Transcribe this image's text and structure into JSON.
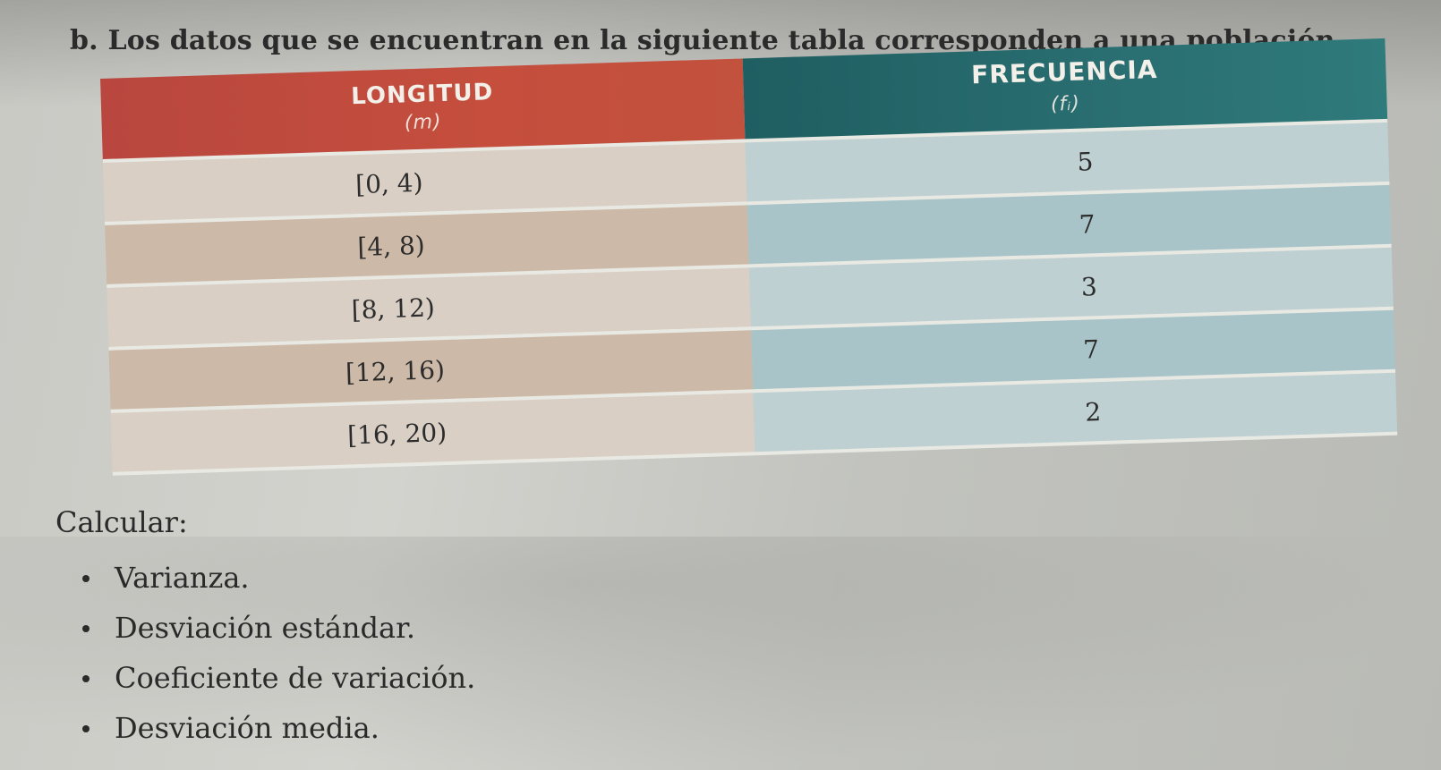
{
  "intro": "b. Los datos que se encuentran en la siguiente tabla corresponden a una población.",
  "table": {
    "headers": {
      "longitud": "LONGITUD",
      "longitud_unit": "(m)",
      "frecuencia": "FRECUENCIA",
      "frecuencia_symbol": "(fᵢ)"
    },
    "rows": [
      {
        "interval": "[0, 4)",
        "freq": "5"
      },
      {
        "interval": "[4, 8)",
        "freq": "7"
      },
      {
        "interval": "[8, 12)",
        "freq": "3"
      },
      {
        "interval": "[12, 16)",
        "freq": "7"
      },
      {
        "interval": "[16, 20)",
        "freq": "2"
      }
    ]
  },
  "calc_label": "Calcular:",
  "tasks": [
    "Varianza.",
    "Desviación estándar.",
    "Coeficiente de variación.",
    "Desviación media."
  ],
  "colors": {
    "header_left": "#c54e3d",
    "header_right": "#2a6f72"
  }
}
